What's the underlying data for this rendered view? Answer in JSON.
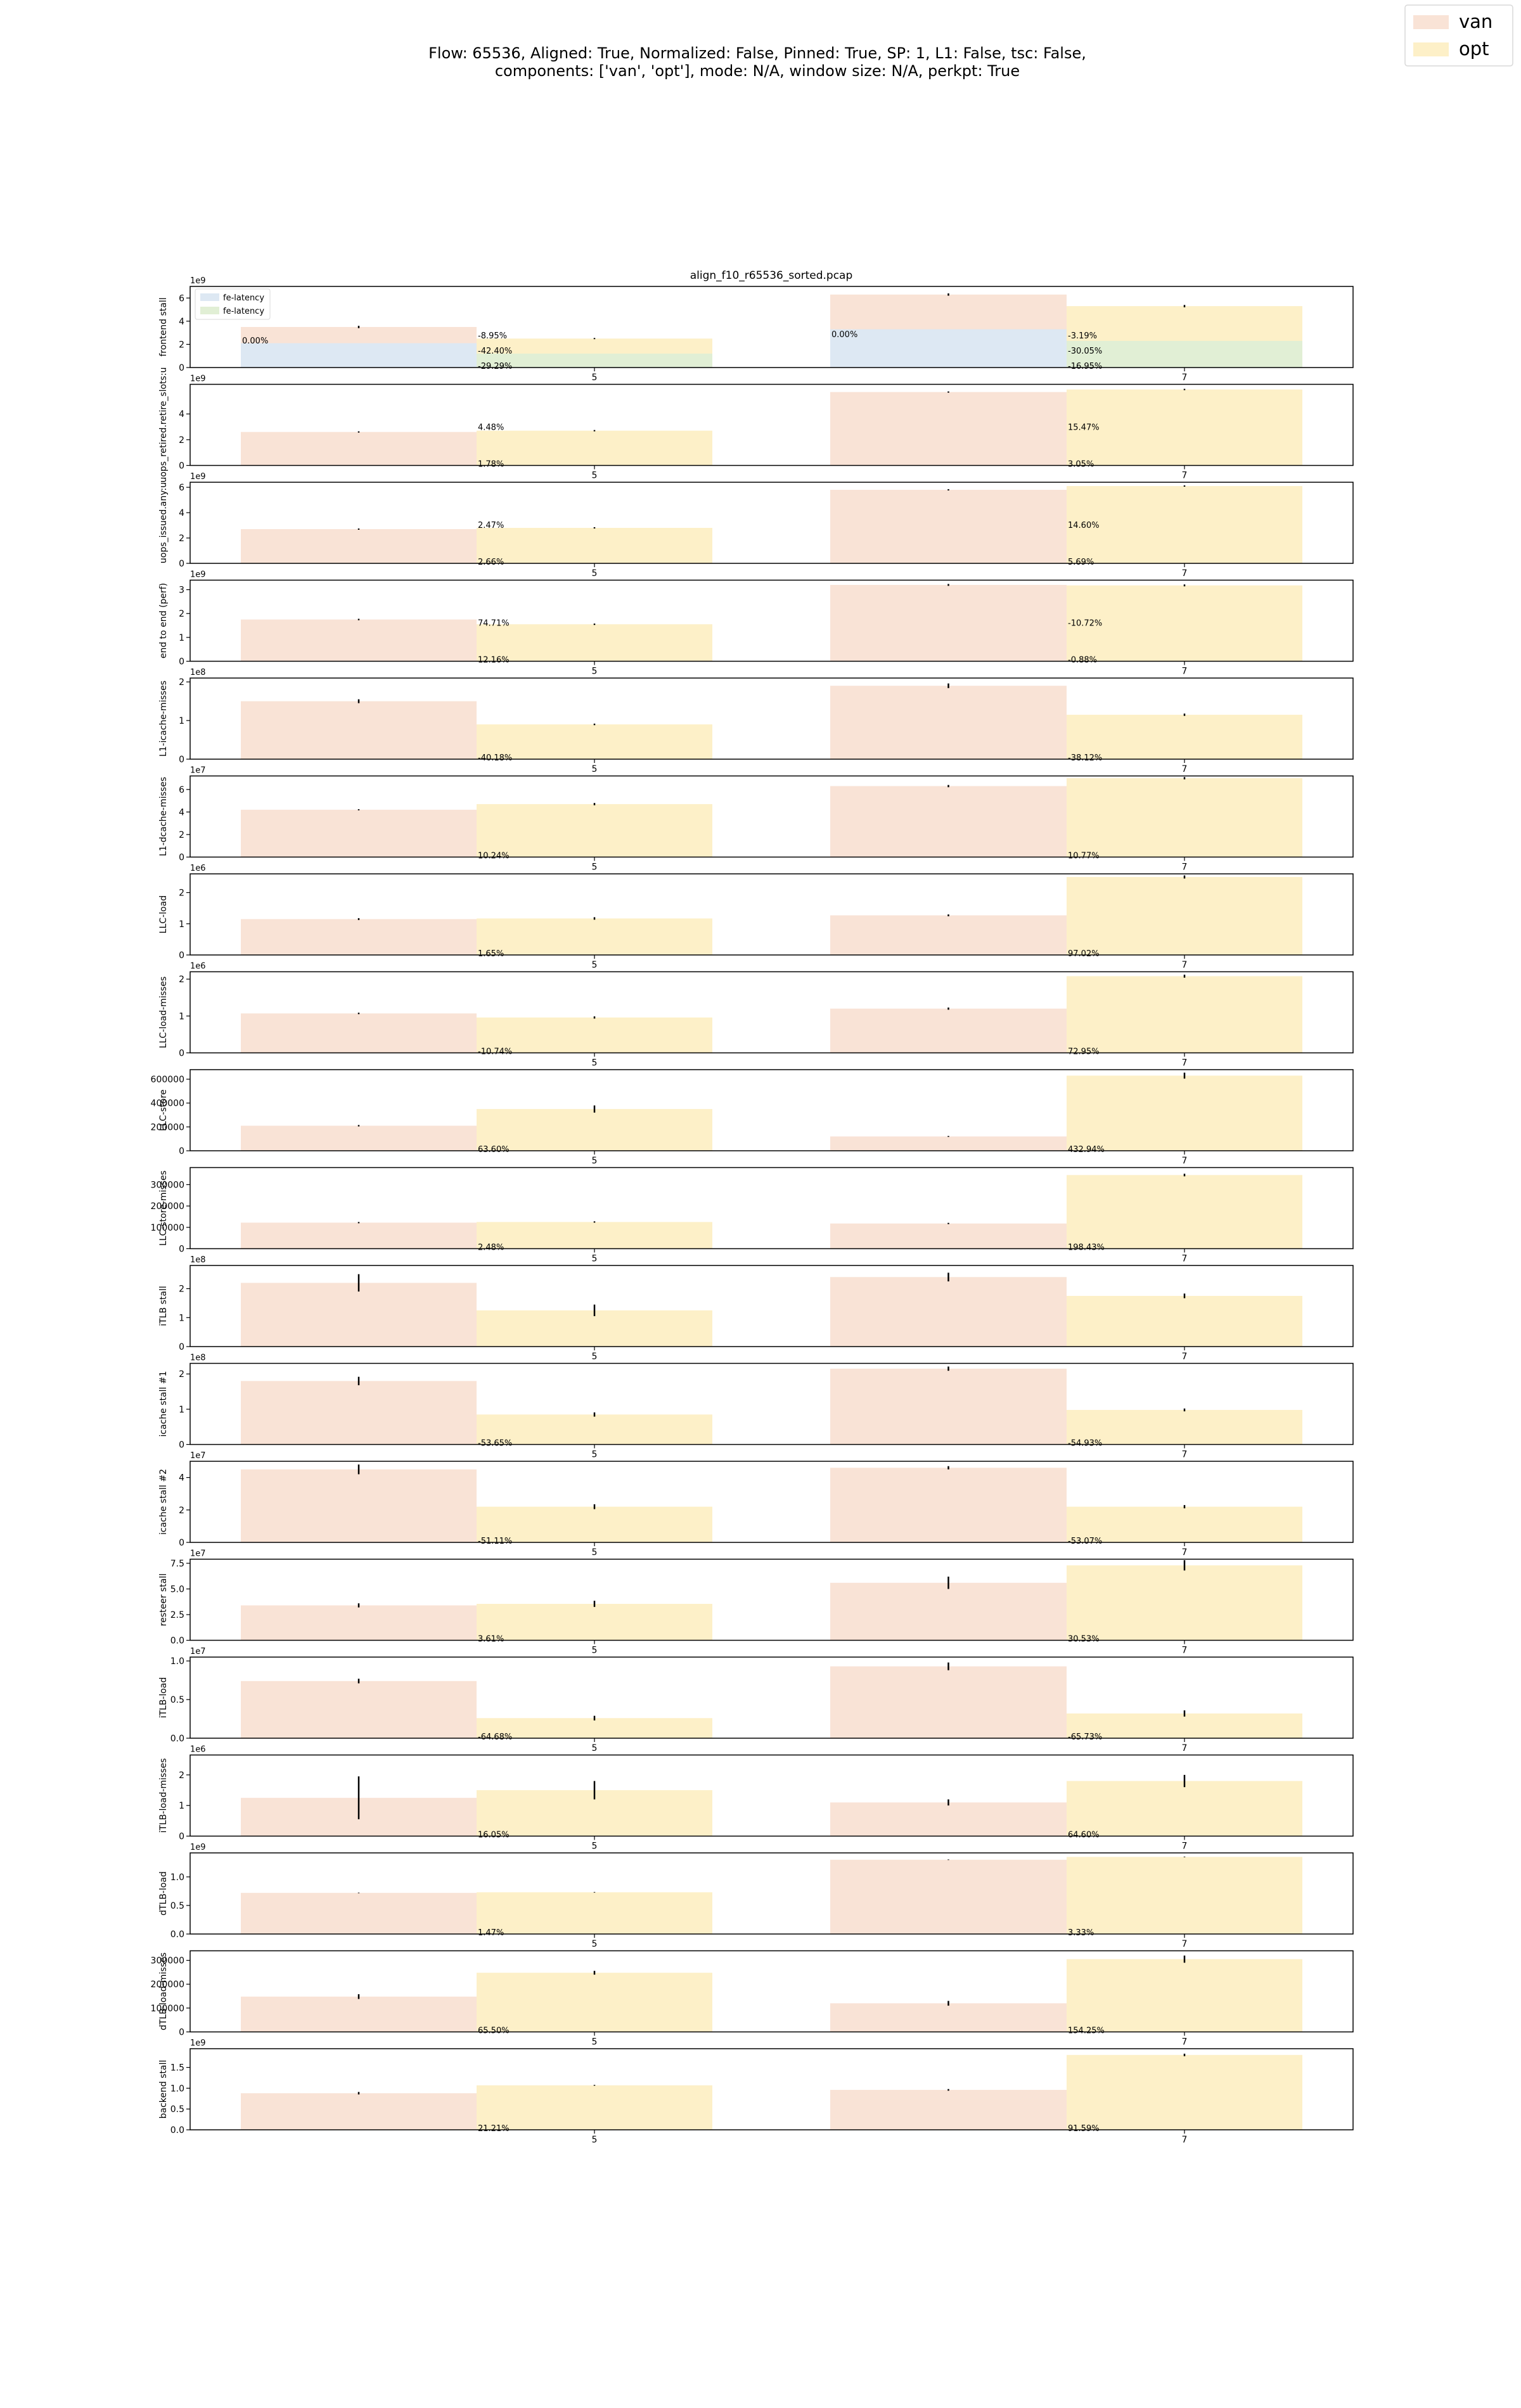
{
  "figure": {
    "suptitle_line1": "Flow: 65536, Aligned: True, Normalized: False, Pinned: True, SP: 1, L1: False, tsc: False,",
    "suptitle_line2": "components: ['van', 'opt'], mode: N/A, window size: N/A, perkpt: True",
    "legend": [
      {
        "label": "van",
        "color": "#f9e3d6"
      },
      {
        "label": "opt",
        "color": "#fdf0c8"
      }
    ],
    "inner_legend": [
      {
        "label": "fe-latency",
        "color": "#dde8f3"
      },
      {
        "label": "fe-latency",
        "color": "#e1efd5"
      }
    ],
    "colors": {
      "van": "#f9e3d6",
      "opt": "#fdf0c8",
      "fe_van": "#dde8f3",
      "fe_opt": "#e1efd5"
    }
  },
  "chart_data": {
    "type": "bar",
    "title": "align_f10_r65536_sorted.pcap",
    "categories": [
      "5",
      "7"
    ],
    "series_names": [
      "van",
      "opt"
    ],
    "panels": [
      {
        "ylabel": "frontend stall",
        "exp": "1e9",
        "ylim": [
          0,
          7
        ],
        "ticks": [
          0,
          2,
          4,
          6
        ],
        "tick_labels": [
          "0",
          "2",
          "4",
          "6"
        ],
        "van": [
          3.5,
          6.3
        ],
        "opt": [
          2.5,
          5.3
        ],
        "van_err": [
          0.1,
          0.1
        ],
        "opt_err": [
          0.05,
          0.1
        ],
        "fe_van": [
          2.1,
          3.3
        ],
        "fe_opt": [
          1.2,
          2.3
        ],
        "labels": [
          [
            "-8.95%",
            "-42.40%",
            "-29.29%"
          ],
          [
            "-3.19%",
            "-30.05%",
            "-16.95%"
          ]
        ],
        "zero_labels": [
          "0.00%",
          "0.00%"
        ]
      },
      {
        "ylabel": "uops_retired.retire_slots:u",
        "exp": "1e9",
        "ylim": [
          0,
          6.3
        ],
        "ticks": [
          0,
          2,
          4
        ],
        "tick_labels": [
          "0",
          "2",
          "4"
        ],
        "van": [
          2.6,
          5.7
        ],
        "opt": [
          2.7,
          5.9
        ],
        "van_err": [
          0.05,
          0.05
        ],
        "opt_err": [
          0.05,
          0.05
        ],
        "labels": [
          [
            "4.48%",
            "1.78%"
          ],
          [
            "15.47%",
            "3.05%"
          ]
        ]
      },
      {
        "ylabel": "uops_issued.any:u",
        "exp": "1e9",
        "ylim": [
          0,
          6.4
        ],
        "ticks": [
          0,
          2,
          4,
          6
        ],
        "tick_labels": [
          "0",
          "2",
          "4",
          "6"
        ],
        "van": [
          2.7,
          5.8
        ],
        "opt": [
          2.8,
          6.1
        ],
        "van_err": [
          0.05,
          0.05
        ],
        "opt_err": [
          0.05,
          0.05
        ],
        "labels": [
          [
            "2.47%",
            "2.66%"
          ],
          [
            "14.60%",
            "5.69%"
          ]
        ]
      },
      {
        "ylabel": "end to end (perf)",
        "exp": "1e9",
        "ylim": [
          0,
          3.4
        ],
        "ticks": [
          0,
          1,
          2,
          3
        ],
        "tick_labels": [
          "0",
          "1",
          "2",
          "3"
        ],
        "van": [
          1.75,
          3.2
        ],
        "opt": [
          1.55,
          3.18
        ],
        "van_err": [
          0.03,
          0.04
        ],
        "opt_err": [
          0.03,
          0.04
        ],
        "labels": [
          [
            "74.71%",
            "12.16%"
          ],
          [
            "-10.72%",
            "-0.88%"
          ]
        ]
      },
      {
        "ylabel": "L1-icache-misses",
        "exp": "1e8",
        "ylim": [
          0,
          2.1
        ],
        "ticks": [
          0,
          1,
          2
        ],
        "tick_labels": [
          "0",
          "1",
          "2"
        ],
        "van": [
          1.5,
          1.9
        ],
        "opt": [
          0.9,
          1.15
        ],
        "van_err": [
          0.05,
          0.06
        ],
        "opt_err": [
          0.02,
          0.03
        ],
        "labels": [
          [
            "-40.18%"
          ],
          [
            "-38.12%"
          ]
        ]
      },
      {
        "ylabel": "L1-dcache-misses",
        "exp": "1e7",
        "ylim": [
          0,
          7.2
        ],
        "ticks": [
          0,
          2,
          4,
          6
        ],
        "tick_labels": [
          "0",
          "2",
          "4",
          "6"
        ],
        "van": [
          4.2,
          6.3
        ],
        "opt": [
          4.7,
          7.0
        ],
        "van_err": [
          0.05,
          0.1
        ],
        "opt_err": [
          0.1,
          0.1
        ],
        "labels": [
          [
            "10.24%"
          ],
          [
            "10.77%"
          ]
        ]
      },
      {
        "ylabel": "LLC-load",
        "exp": "1e6",
        "ylim": [
          0,
          2.6
        ],
        "ticks": [
          0,
          1,
          2
        ],
        "tick_labels": [
          "0",
          "1",
          "2"
        ],
        "van": [
          1.15,
          1.27
        ],
        "opt": [
          1.17,
          2.5
        ],
        "van_err": [
          0.03,
          0.03
        ],
        "opt_err": [
          0.04,
          0.05
        ],
        "labels": [
          [
            "1.65%"
          ],
          [
            "97.02%"
          ]
        ]
      },
      {
        "ylabel": "LLC-load-misses",
        "exp": "1e6",
        "ylim": [
          0,
          2.2
        ],
        "ticks": [
          0,
          1,
          2
        ],
        "tick_labels": [
          "0",
          "1",
          "2"
        ],
        "van": [
          1.07,
          1.2
        ],
        "opt": [
          0.96,
          2.08
        ],
        "van_err": [
          0.02,
          0.03
        ],
        "opt_err": [
          0.03,
          0.04
        ],
        "labels": [
          [
            "-10.74%"
          ],
          [
            "72.95%"
          ]
        ]
      },
      {
        "ylabel": "LLC-store",
        "exp": "",
        "ylim": [
          0,
          680000
        ],
        "ticks": [
          0,
          200000,
          400000,
          600000
        ],
        "tick_labels": [
          "0",
          "200000",
          "400000",
          "600000"
        ],
        "van": [
          210000,
          120000
        ],
        "opt": [
          350000,
          630000
        ],
        "van_err": [
          6000,
          4000
        ],
        "opt_err": [
          30000,
          25000
        ],
        "labels": [
          [
            "63.60%"
          ],
          [
            "432.94%"
          ]
        ]
      },
      {
        "ylabel": "LLC-store-misses",
        "exp": "",
        "ylim": [
          0,
          380000
        ],
        "ticks": [
          0,
          100000,
          200000,
          300000
        ],
        "tick_labels": [
          "0",
          "100000",
          "200000",
          "300000"
        ],
        "van": [
          122000,
          118000
        ],
        "opt": [
          125000,
          345000
        ],
        "van_err": [
          3000,
          3000
        ],
        "opt_err": [
          3000,
          6000
        ],
        "labels": [
          [
            "2.48%"
          ],
          [
            "198.43%"
          ]
        ]
      },
      {
        "ylabel": "iTLB stall",
        "exp": "1e8",
        "ylim": [
          0,
          2.8
        ],
        "ticks": [
          0,
          1,
          2
        ],
        "tick_labels": [
          "0",
          "1",
          "2"
        ],
        "van": [
          2.2,
          2.4
        ],
        "opt": [
          1.25,
          1.75
        ],
        "van_err": [
          0.3,
          0.15
        ],
        "opt_err": [
          0.2,
          0.08
        ],
        "labels": [
          [],
          []
        ]
      },
      {
        "ylabel": "icache stall #1",
        "exp": "1e8",
        "ylim": [
          0,
          2.3
        ],
        "ticks": [
          0,
          1,
          2
        ],
        "tick_labels": [
          "0",
          "1",
          "2"
        ],
        "van": [
          1.8,
          2.15
        ],
        "opt": [
          0.85,
          0.98
        ],
        "van_err": [
          0.12,
          0.06
        ],
        "opt_err": [
          0.06,
          0.04
        ],
        "labels": [
          [
            "-53.65%"
          ],
          [
            "-54.93%"
          ]
        ]
      },
      {
        "ylabel": "icache stall #2",
        "exp": "1e7",
        "ylim": [
          0,
          5.0
        ],
        "ticks": [
          0,
          2,
          4
        ],
        "tick_labels": [
          "0",
          "2",
          "4"
        ],
        "van": [
          4.5,
          4.6
        ],
        "opt": [
          2.2,
          2.2
        ],
        "van_err": [
          0.3,
          0.1
        ],
        "opt_err": [
          0.15,
          0.1
        ],
        "labels": [
          [
            "-51.11%"
          ],
          [
            "-53.07%"
          ]
        ]
      },
      {
        "ylabel": "resteer stall",
        "exp": "1e7",
        "ylim": [
          0,
          7.9
        ],
        "ticks": [
          0,
          2.5,
          5.0,
          7.5
        ],
        "tick_labels": [
          "0.0",
          "2.5",
          "5.0",
          "7.5"
        ],
        "van": [
          3.4,
          5.6
        ],
        "opt": [
          3.55,
          7.3
        ],
        "van_err": [
          0.2,
          0.6
        ],
        "opt_err": [
          0.3,
          0.5
        ],
        "labels": [
          [
            "3.61%"
          ],
          [
            "30.53%"
          ]
        ]
      },
      {
        "ylabel": "iTLB-load",
        "exp": "1e7",
        "ylim": [
          0,
          1.05
        ],
        "ticks": [
          0,
          0.5,
          1.0
        ],
        "tick_labels": [
          "0.0",
          "0.5",
          "1.0"
        ],
        "van": [
          0.74,
          0.93
        ],
        "opt": [
          0.26,
          0.32
        ],
        "van_err": [
          0.03,
          0.05
        ],
        "opt_err": [
          0.03,
          0.04
        ],
        "labels": [
          [
            "-64.68%"
          ],
          [
            "-65.73%"
          ]
        ]
      },
      {
        "ylabel": "iTLB-load-misses",
        "exp": "1e6",
        "ylim": [
          0,
          2.65
        ],
        "ticks": [
          0,
          1,
          2
        ],
        "tick_labels": [
          "0",
          "1",
          "2"
        ],
        "van": [
          1.25,
          1.1
        ],
        "opt": [
          1.5,
          1.8
        ],
        "van_err": [
          0.7,
          0.1
        ],
        "opt_err": [
          0.3,
          0.2
        ],
        "labels": [
          [
            "16.05%"
          ],
          [
            "64.60%"
          ]
        ]
      },
      {
        "ylabel": "dTLB-load",
        "exp": "1e9",
        "ylim": [
          0,
          1.42
        ],
        "ticks": [
          0,
          0.5,
          1.0
        ],
        "tick_labels": [
          "0.0",
          "0.5",
          "1.0"
        ],
        "van": [
          0.72,
          1.3
        ],
        "opt": [
          0.73,
          1.35
        ],
        "van_err": [
          0.005,
          0.005
        ],
        "opt_err": [
          0.005,
          0.005
        ],
        "labels": [
          [
            "1.47%"
          ],
          [
            "3.33%"
          ]
        ]
      },
      {
        "ylabel": "dTLB-load-misses",
        "exp": "",
        "ylim": [
          0,
          340000
        ],
        "ticks": [
          0,
          100000,
          200000,
          300000
        ],
        "tick_labels": [
          "0",
          "100000",
          "200000",
          "300000"
        ],
        "van": [
          148000,
          120000
        ],
        "opt": [
          248000,
          305000
        ],
        "van_err": [
          10000,
          10000
        ],
        "opt_err": [
          8000,
          15000
        ],
        "labels": [
          [
            "65.50%"
          ],
          [
            "154.25%"
          ]
        ]
      },
      {
        "ylabel": "backend stall",
        "exp": "1e9",
        "ylim": [
          0,
          1.95
        ],
        "ticks": [
          0,
          0.5,
          1.0,
          1.5
        ],
        "tick_labels": [
          "0.0",
          "0.5",
          "1.0",
          "1.5"
        ],
        "van": [
          0.88,
          0.96
        ],
        "opt": [
          1.07,
          1.8
        ],
        "van_err": [
          0.03,
          0.02
        ],
        "opt_err": [
          0.01,
          0.03
        ],
        "labels": [
          [
            "21.21%"
          ],
          [
            "91.59%"
          ]
        ]
      }
    ]
  }
}
